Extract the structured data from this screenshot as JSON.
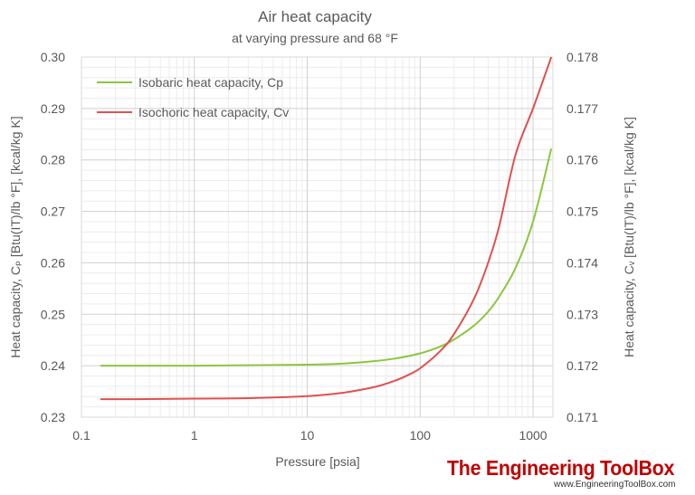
{
  "chart_data": {
    "type": "line",
    "title": "Air heat capacity",
    "subtitle": "at varying pressure and 68 °F",
    "xlabel": "Pressure [psia]",
    "ylabel_left": "Heat capacity, Cₚ [Btu(IT)/lb °F], [kcal/kg K]",
    "ylabel_right": "Heat capacity, Cᵥ [Btu(IT)/lb °F], [kcal/kg K]",
    "x_scale": "log",
    "xlim": [
      0.1,
      1500
    ],
    "x_ticks": [
      0.1,
      1,
      10,
      100,
      1000
    ],
    "x_tick_labels": [
      "0.1",
      "1",
      "10",
      "100",
      "1000"
    ],
    "ylim_left": [
      0.23,
      0.3
    ],
    "y_ticks_left": [
      "0.23",
      "0.24",
      "0.25",
      "0.26",
      "0.27",
      "0.28",
      "0.29",
      "0.30"
    ],
    "ylim_right": [
      0.171,
      0.178
    ],
    "y_ticks_right": [
      "0.171",
      "0.172",
      "0.173",
      "0.174",
      "0.175",
      "0.176",
      "0.177",
      "0.178"
    ],
    "grid": true,
    "legend_position": "top-left",
    "series": [
      {
        "name": "Isobaric heat capacity, Cp",
        "axis": "left",
        "color": "#8cc63f",
        "x": [
          0.147,
          0.3,
          1,
          3,
          10,
          20,
          40,
          60,
          100,
          150,
          200,
          300,
          400,
          500,
          700,
          1000,
          1450
        ],
        "y": [
          0.24,
          0.24,
          0.24,
          0.2401,
          0.2402,
          0.2404,
          0.2409,
          0.2414,
          0.2424,
          0.2437,
          0.2451,
          0.2478,
          0.2505,
          0.2534,
          0.259,
          0.268,
          0.2822
        ]
      },
      {
        "name": "Isochoric heat capacity, Cv",
        "axis": "right",
        "color": "#e05050",
        "x": [
          0.147,
          0.3,
          1,
          3,
          10,
          20,
          40,
          60,
          80,
          100,
          150,
          200,
          300,
          400,
          500,
          700,
          1000,
          1300,
          1450
        ],
        "y": [
          0.17135,
          0.17135,
          0.17136,
          0.17137,
          0.17141,
          0.17147,
          0.17159,
          0.17171,
          0.17183,
          0.17195,
          0.17228,
          0.17262,
          0.1733,
          0.174,
          0.1747,
          0.1761,
          0.177,
          0.1777,
          0.178
        ]
      }
    ]
  },
  "brand": {
    "name": "The Engineering ToolBox",
    "url": "www.EngineeringToolBox.com"
  }
}
